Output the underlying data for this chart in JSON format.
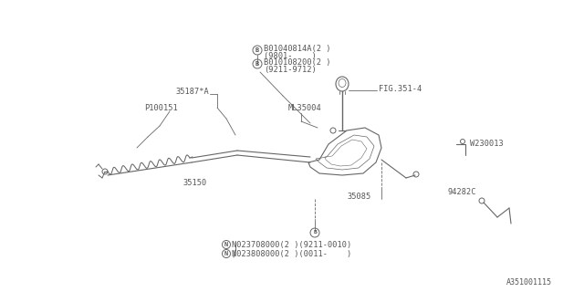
{
  "bg": "#ffffff",
  "lc": "#666666",
  "tc": "#555555",
  "fw": 6.4,
  "fh": 3.2,
  "dpi": 100,
  "watermark": "A351001115",
  "b1_text": "B01040814A(2 )",
  "b1_sub": "(9801-    )",
  "b2_text": "B010108200(2 )",
  "b2_sub": "(9211-9712)",
  "p35187": "35187*A",
  "pP100151": "P100151",
  "pML35004": "ML35004",
  "pFIG351": "FIG.351-4",
  "p35150": "35150",
  "p35085": "35085",
  "pW230013": "W230013",
  "p94282C": "94282C",
  "nut1": "N023708000(2 )(9211-0010)",
  "nut2": "N023808000(2 )(0011-    )"
}
